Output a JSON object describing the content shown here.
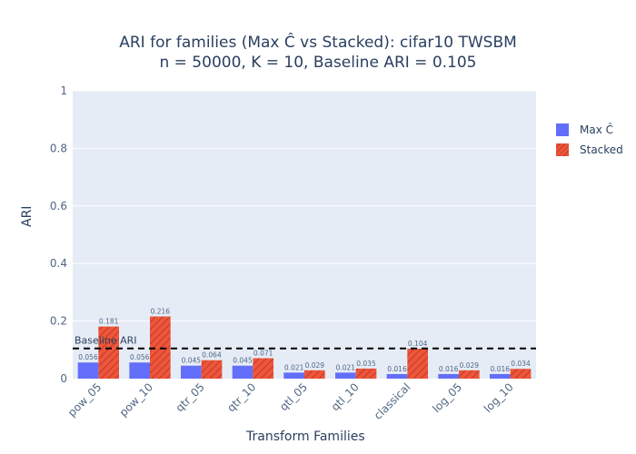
{
  "chart_data": {
    "type": "bar",
    "title": "ARI for families (Max Ĉ vs Stacked): cifar10 TWSBM",
    "subtitle": "n = 50000, K = 10, Baseline ARI = 0.105",
    "xlabel": "Transform Families",
    "ylabel": "ARI",
    "ylim": [
      0,
      1
    ],
    "yticks": [
      0,
      0.2,
      0.4,
      0.6,
      0.8,
      1
    ],
    "ytick_labels": [
      "0",
      "0.2",
      "0.4",
      "0.6",
      "0.8",
      "1"
    ],
    "grid": true,
    "legend_position": "top-right",
    "categories": [
      "pow_05",
      "pow_10",
      "qtr_05",
      "qtr_10",
      "qtl_05",
      "qtl_10",
      "classical",
      "log_05",
      "log_10"
    ],
    "series": [
      {
        "name": "Max Ĉ",
        "color": "#636efa",
        "pattern": "none",
        "values": [
          0.056,
          0.056,
          0.045,
          0.045,
          0.021,
          0.021,
          0.016,
          0.016,
          0.016
        ],
        "labels": [
          "0.056",
          "0.056",
          "0.045",
          "0.045",
          "0.021",
          "0.021",
          "0.016",
          "0.016",
          "0.016"
        ]
      },
      {
        "name": "Stacked",
        "color": "#ef553b",
        "pattern": "diagonal-hatch",
        "values": [
          0.181,
          0.216,
          0.064,
          0.071,
          0.029,
          0.035,
          0.104,
          0.029,
          0.034
        ],
        "labels": [
          "0.181",
          "0.216",
          "0.064",
          "0.071",
          "0.029",
          "0.035",
          "0.104",
          "0.029",
          "0.034"
        ]
      }
    ],
    "baseline": {
      "value": 0.105,
      "label": "Baseline ARI",
      "style": "dashed",
      "color": "#000000"
    }
  }
}
